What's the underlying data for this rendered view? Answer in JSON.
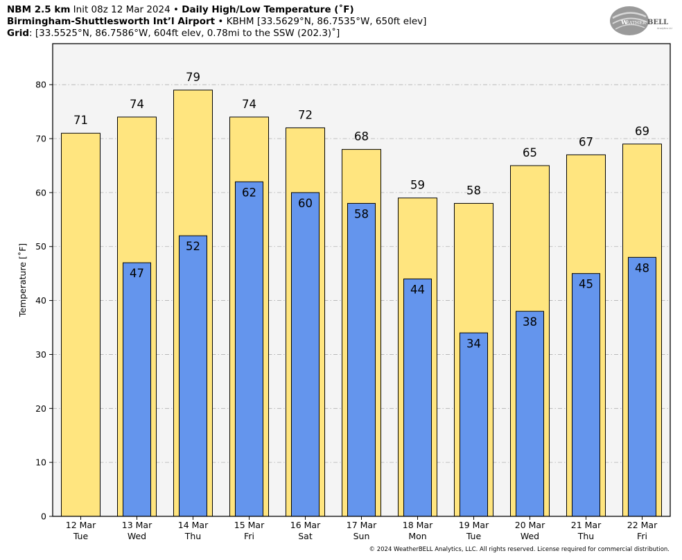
{
  "header": {
    "line1": {
      "model": "NBM 2.5 km",
      "init": " Init 08z 12 Mar 2024",
      "sep": " • ",
      "product": "Daily High/Low Temperature (˚F)"
    },
    "line2": {
      "station": "Birmingham-Shuttlesworth Int’l Airport",
      "sep": " • ",
      "details": "KBHM [33.5629°N, 86.7535°W, 650ft elev]"
    },
    "line3": {
      "label": "Grid",
      "details": ": [33.5525°N, 86.7586°W, 604ft elev, 0.78mi to the SSW (202.3)˚]"
    },
    "logo_text": "WeatherBELL",
    "logo_sub": "Analytics LLC"
  },
  "copyright": "© 2024 WeatherBELL Analytics, LLC. All rights reserved. License required for commercial distribution.",
  "colors": {
    "high": "#ffe57f",
    "low": "#6495ed",
    "plot_bg": "#f4f4f4",
    "grid": "#b0b0b0"
  },
  "chart_data": {
    "type": "bar",
    "title": "Daily High/Low Temperature (˚F)",
    "ylabel": "Temperature [˚F]",
    "ylim": [
      0,
      87.6
    ],
    "yticks": [
      0,
      10,
      20,
      30,
      40,
      50,
      60,
      70,
      80
    ],
    "grid": true,
    "categories": [
      {
        "date": "12 Mar",
        "day": "Tue"
      },
      {
        "date": "13 Mar",
        "day": "Wed"
      },
      {
        "date": "14 Mar",
        "day": "Thu"
      },
      {
        "date": "15 Mar",
        "day": "Fri"
      },
      {
        "date": "16 Mar",
        "day": "Sat"
      },
      {
        "date": "17 Mar",
        "day": "Sun"
      },
      {
        "date": "18 Mar",
        "day": "Mon"
      },
      {
        "date": "19 Mar",
        "day": "Tue"
      },
      {
        "date": "20 Mar",
        "day": "Wed"
      },
      {
        "date": "21 Mar",
        "day": "Thu"
      },
      {
        "date": "22 Mar",
        "day": "Fri"
      }
    ],
    "series": [
      {
        "key": "high",
        "values": [
          71,
          74,
          79,
          74,
          72,
          68,
          59,
          58,
          65,
          67,
          69
        ],
        "labels": [
          "71",
          "74",
          "79",
          "74",
          "72",
          "68",
          "59",
          "58",
          "65",
          "67",
          "69"
        ]
      },
      {
        "key": "low",
        "values": [
          null,
          47,
          52,
          62,
          60,
          58,
          44,
          34,
          38,
          45,
          48
        ],
        "labels": [
          "",
          "47",
          "52",
          "62",
          "60",
          "58",
          "44",
          "34",
          "38",
          "45",
          "48"
        ]
      }
    ]
  }
}
